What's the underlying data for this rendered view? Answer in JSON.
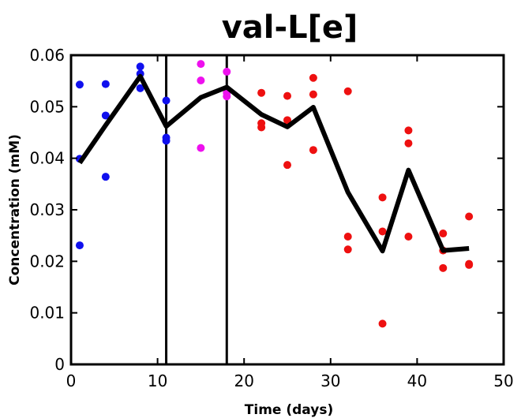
{
  "chart_data": {
    "type": "scatter",
    "title": "val-L[e]",
    "xlabel": "Time (days)",
    "ylabel": "Concentration (mM)",
    "xlim": [
      0,
      50
    ],
    "ylim": [
      0,
      0.06
    ],
    "x_ticks": [
      0,
      10,
      20,
      30,
      40,
      50
    ],
    "y_ticks": [
      0,
      0.01,
      0.02,
      0.03,
      0.04,
      0.05,
      0.06
    ],
    "x_tick_labels": [
      "0",
      "10",
      "20",
      "30",
      "40",
      "50"
    ],
    "y_tick_labels": [
      "0",
      "0.01",
      "0.02",
      "0.03",
      "0.04",
      "0.05",
      "0.06"
    ],
    "grid": false,
    "vertical_lines": [
      11,
      18
    ],
    "series": [
      {
        "color": "#1010ee",
        "points": [
          [
            1,
            0.0543
          ],
          [
            1,
            0.0399
          ],
          [
            1,
            0.0231
          ],
          [
            4,
            0.0544
          ],
          [
            4,
            0.0483
          ],
          [
            4,
            0.0364
          ],
          [
            8,
            0.0578
          ],
          [
            8,
            0.0564
          ],
          [
            8,
            0.0536
          ],
          [
            11,
            0.0512
          ],
          [
            11,
            0.044
          ],
          [
            11,
            0.0434
          ]
        ]
      },
      {
        "color": "#ee10ee",
        "points": [
          [
            15,
            0.0583
          ],
          [
            15,
            0.0551
          ],
          [
            15,
            0.042
          ],
          [
            18,
            0.0568
          ],
          [
            18,
            0.0527
          ],
          [
            18,
            0.052
          ]
        ]
      },
      {
        "color": "#ee1010",
        "points": [
          [
            22,
            0.0527
          ],
          [
            22,
            0.0468
          ],
          [
            22,
            0.046
          ],
          [
            25,
            0.0521
          ],
          [
            25,
            0.0474
          ],
          [
            25,
            0.0387
          ],
          [
            28,
            0.0556
          ],
          [
            28,
            0.0524
          ],
          [
            28,
            0.0416
          ],
          [
            32,
            0.053
          ],
          [
            32,
            0.0248
          ],
          [
            32,
            0.0223
          ],
          [
            36,
            0.0324
          ],
          [
            36,
            0.0258
          ],
          [
            36,
            0.0079
          ],
          [
            39,
            0.0454
          ],
          [
            39,
            0.0429
          ],
          [
            39,
            0.0248
          ],
          [
            43,
            0.0254
          ],
          [
            43,
            0.0221
          ],
          [
            43,
            0.0187
          ],
          [
            46,
            0.0287
          ],
          [
            46,
            0.0195
          ],
          [
            46,
            0.0193
          ]
        ]
      }
    ],
    "mean_line": {
      "color": "#000000",
      "x": [
        1,
        4,
        8,
        11,
        15,
        18,
        22,
        25,
        28,
        32,
        36,
        39,
        43,
        46
      ],
      "y": [
        0.0391,
        0.0464,
        0.0559,
        0.0462,
        0.0518,
        0.0538,
        0.0485,
        0.0461,
        0.0499,
        0.0334,
        0.022,
        0.0377,
        0.0221,
        0.0225
      ]
    }
  }
}
